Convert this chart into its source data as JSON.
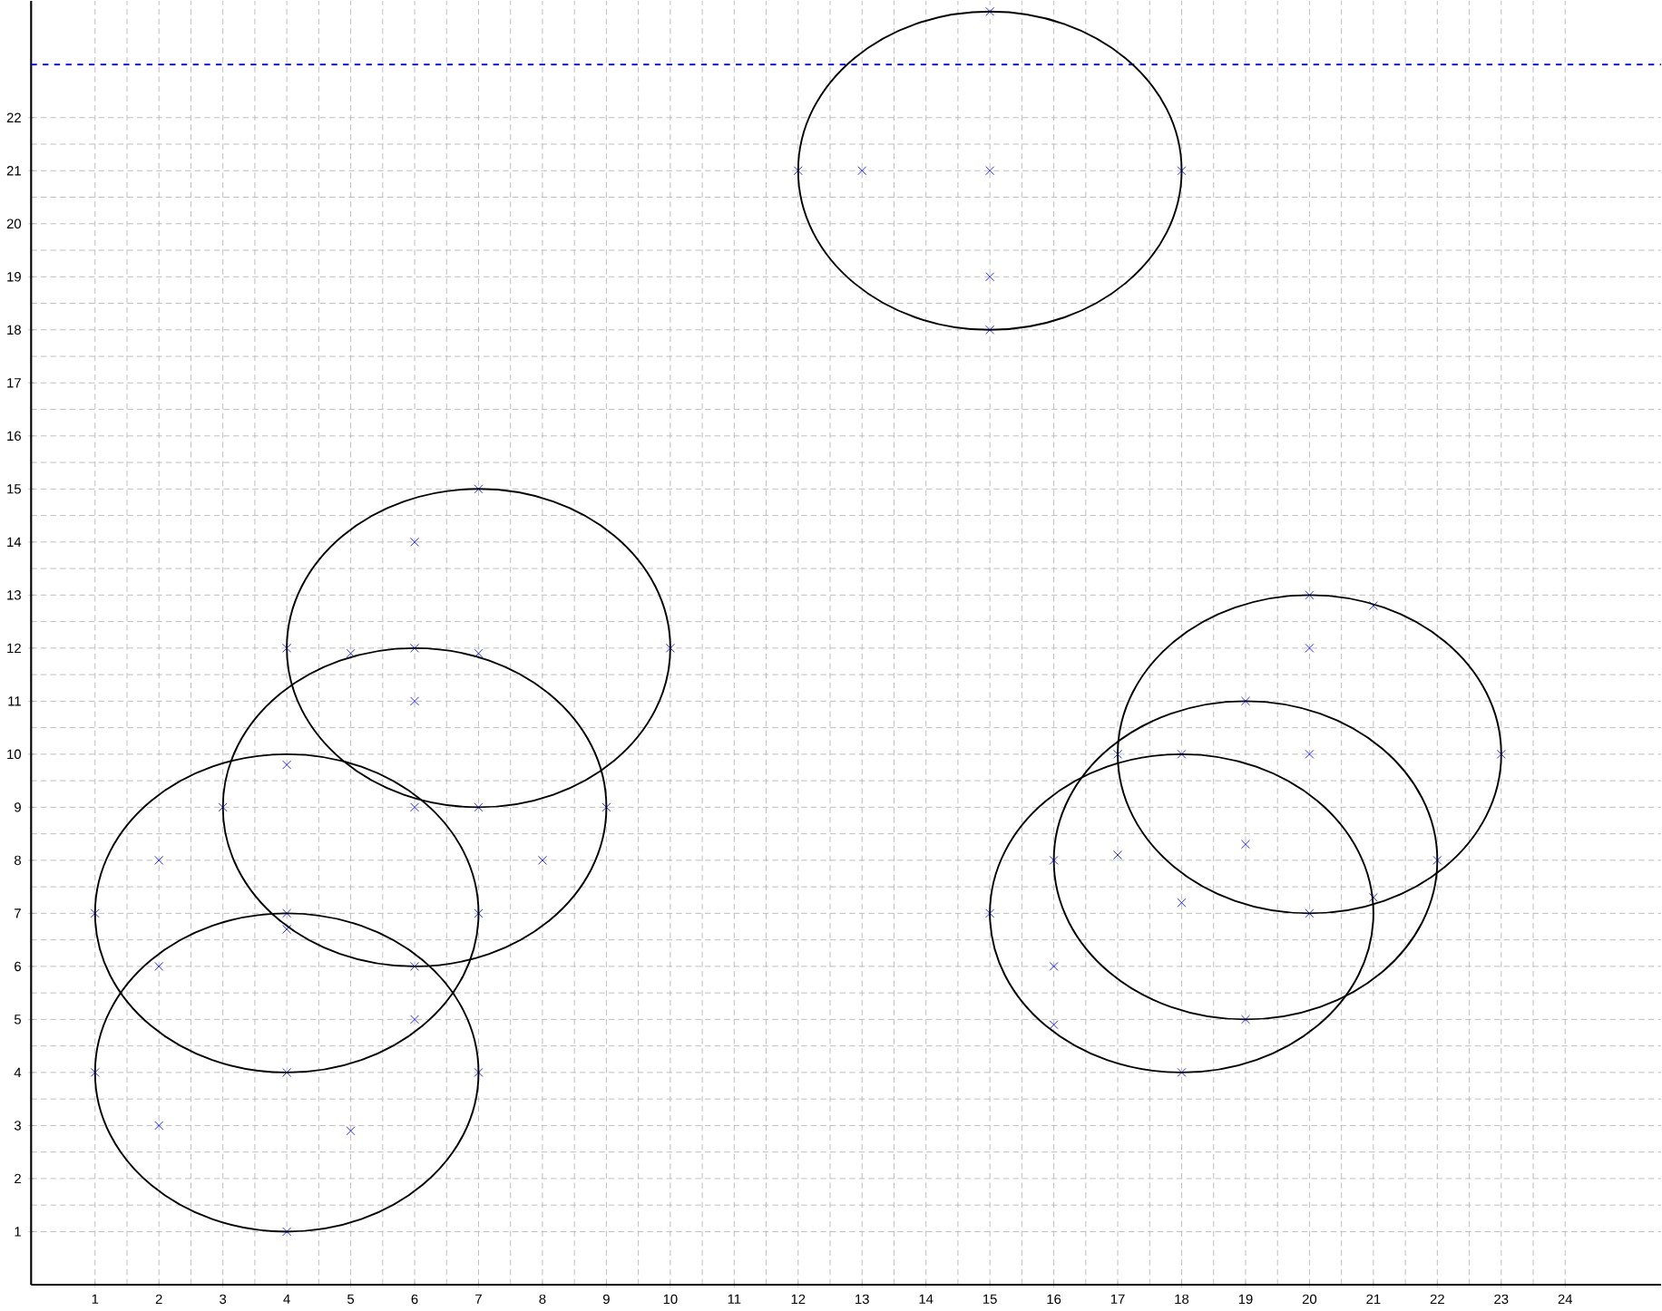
{
  "chart_data": {
    "type": "scatter",
    "marker": "cross",
    "grid": true,
    "xlim": [
      0,
      25.5
    ],
    "ylim": [
      0,
      24.2
    ],
    "xticks": [
      1,
      2,
      3,
      4,
      5,
      6,
      7,
      8,
      9,
      10,
      11,
      12,
      13,
      14,
      15,
      16,
      17,
      18,
      19,
      20,
      21,
      22,
      23,
      24
    ],
    "yticks": [
      1,
      2,
      3,
      4,
      5,
      6,
      7,
      8,
      9,
      10,
      11,
      12,
      13,
      14,
      15,
      16,
      17,
      18,
      19,
      20,
      21,
      22
    ],
    "ref_lines": [
      {
        "axis": "y",
        "value": 23,
        "color": "#0000ff",
        "line_style": "dashed"
      }
    ],
    "series": [
      {
        "color": "#0000ff",
        "x": [
          2,
          4,
          5,
          2,
          2,
          4,
          6,
          6,
          8,
          6,
          5,
          6,
          7,
          13,
          15,
          15,
          16,
          16,
          17,
          18,
          19,
          19,
          20,
          20,
          21,
          21,
          1,
          7,
          4,
          1,
          7,
          4,
          3,
          9,
          6,
          4,
          10,
          7,
          7,
          12,
          18,
          15,
          15,
          15,
          18,
          18,
          16,
          22,
          19,
          17,
          23,
          20,
          20,
          6,
          4
        ],
        "values": [
          3,
          4,
          2.9,
          6,
          8,
          7,
          5,
          9,
          8,
          11,
          11.9,
          14,
          11.9,
          21,
          21,
          19,
          4.9,
          6,
          8.1,
          7.2,
          8.3,
          11,
          10,
          12,
          12.8,
          7.3,
          4,
          4,
          1,
          7,
          7,
          9.8,
          9,
          9,
          6,
          12,
          12,
          9,
          15,
          21,
          21,
          18,
          24,
          7,
          4,
          10,
          8,
          8,
          5,
          10,
          10,
          7,
          13,
          12,
          6.7
        ]
      }
    ]
  }
}
